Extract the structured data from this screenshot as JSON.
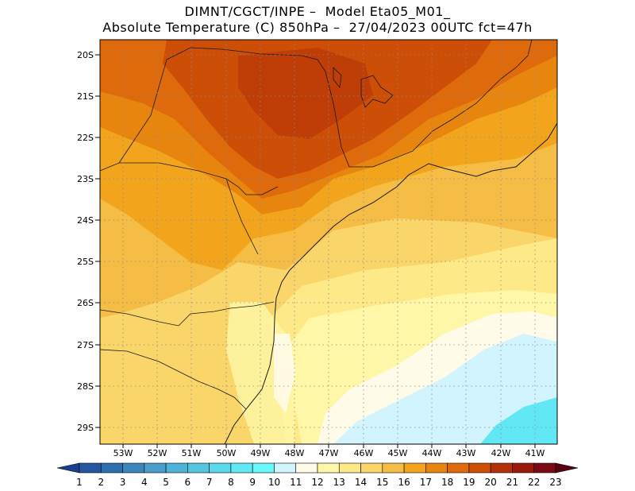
{
  "title_line1": "DIMNT/CGCT/INPE –  Model Eta05_M01_",
  "title_line2": "Absolute Temperature (C) 850hPa –  27/04/2023 00UTC fct=47h",
  "lat_labels": [
    "20S",
    "21S",
    "22S",
    "23S",
    "24S",
    "25S",
    "26S",
    "27S",
    "28S",
    "29S"
  ],
  "lon_labels": [
    "53W",
    "52W",
    "51W",
    "50W",
    "49W",
    "48W",
    "47W",
    "46W",
    "45W",
    "44W",
    "43W",
    "42W",
    "41W"
  ],
  "colorbar": {
    "labels": [
      "1",
      "2",
      "3",
      "4",
      "5",
      "6",
      "7",
      "8",
      "9",
      "10",
      "11",
      "12",
      "13",
      "14",
      "15",
      "16",
      "17",
      "18",
      "19",
      "20",
      "21",
      "22",
      "23"
    ],
    "colors": [
      "#1b3f8f",
      "#2457a0",
      "#2e6fae",
      "#3a86bd",
      "#4a9ccb",
      "#4fb2d8",
      "#55c6e2",
      "#5ad8ec",
      "#62e8f4",
      "#6af8fb",
      "#d2f4ff",
      "#fffbe8",
      "#fff7a8",
      "#fde988",
      "#fad56a",
      "#f5bd45",
      "#f2a51c",
      "#e8850f",
      "#de6a0b",
      "#cc4e07",
      "#b53208",
      "#9a1a0c",
      "#7a0b14",
      "#5a0410"
    ]
  },
  "legend_colors": {
    "t11": "#d2f4ff",
    "t12": "#fffbe8",
    "t13": "#fff7a8",
    "t14": "#fde988",
    "t15": "#fad56a",
    "t16": "#f5bd45",
    "t17": "#f2a51c",
    "t18": "#e8850f",
    "t19": "#de6a0b",
    "t20": "#cc4e07",
    "cold": "#62e8f4"
  }
}
